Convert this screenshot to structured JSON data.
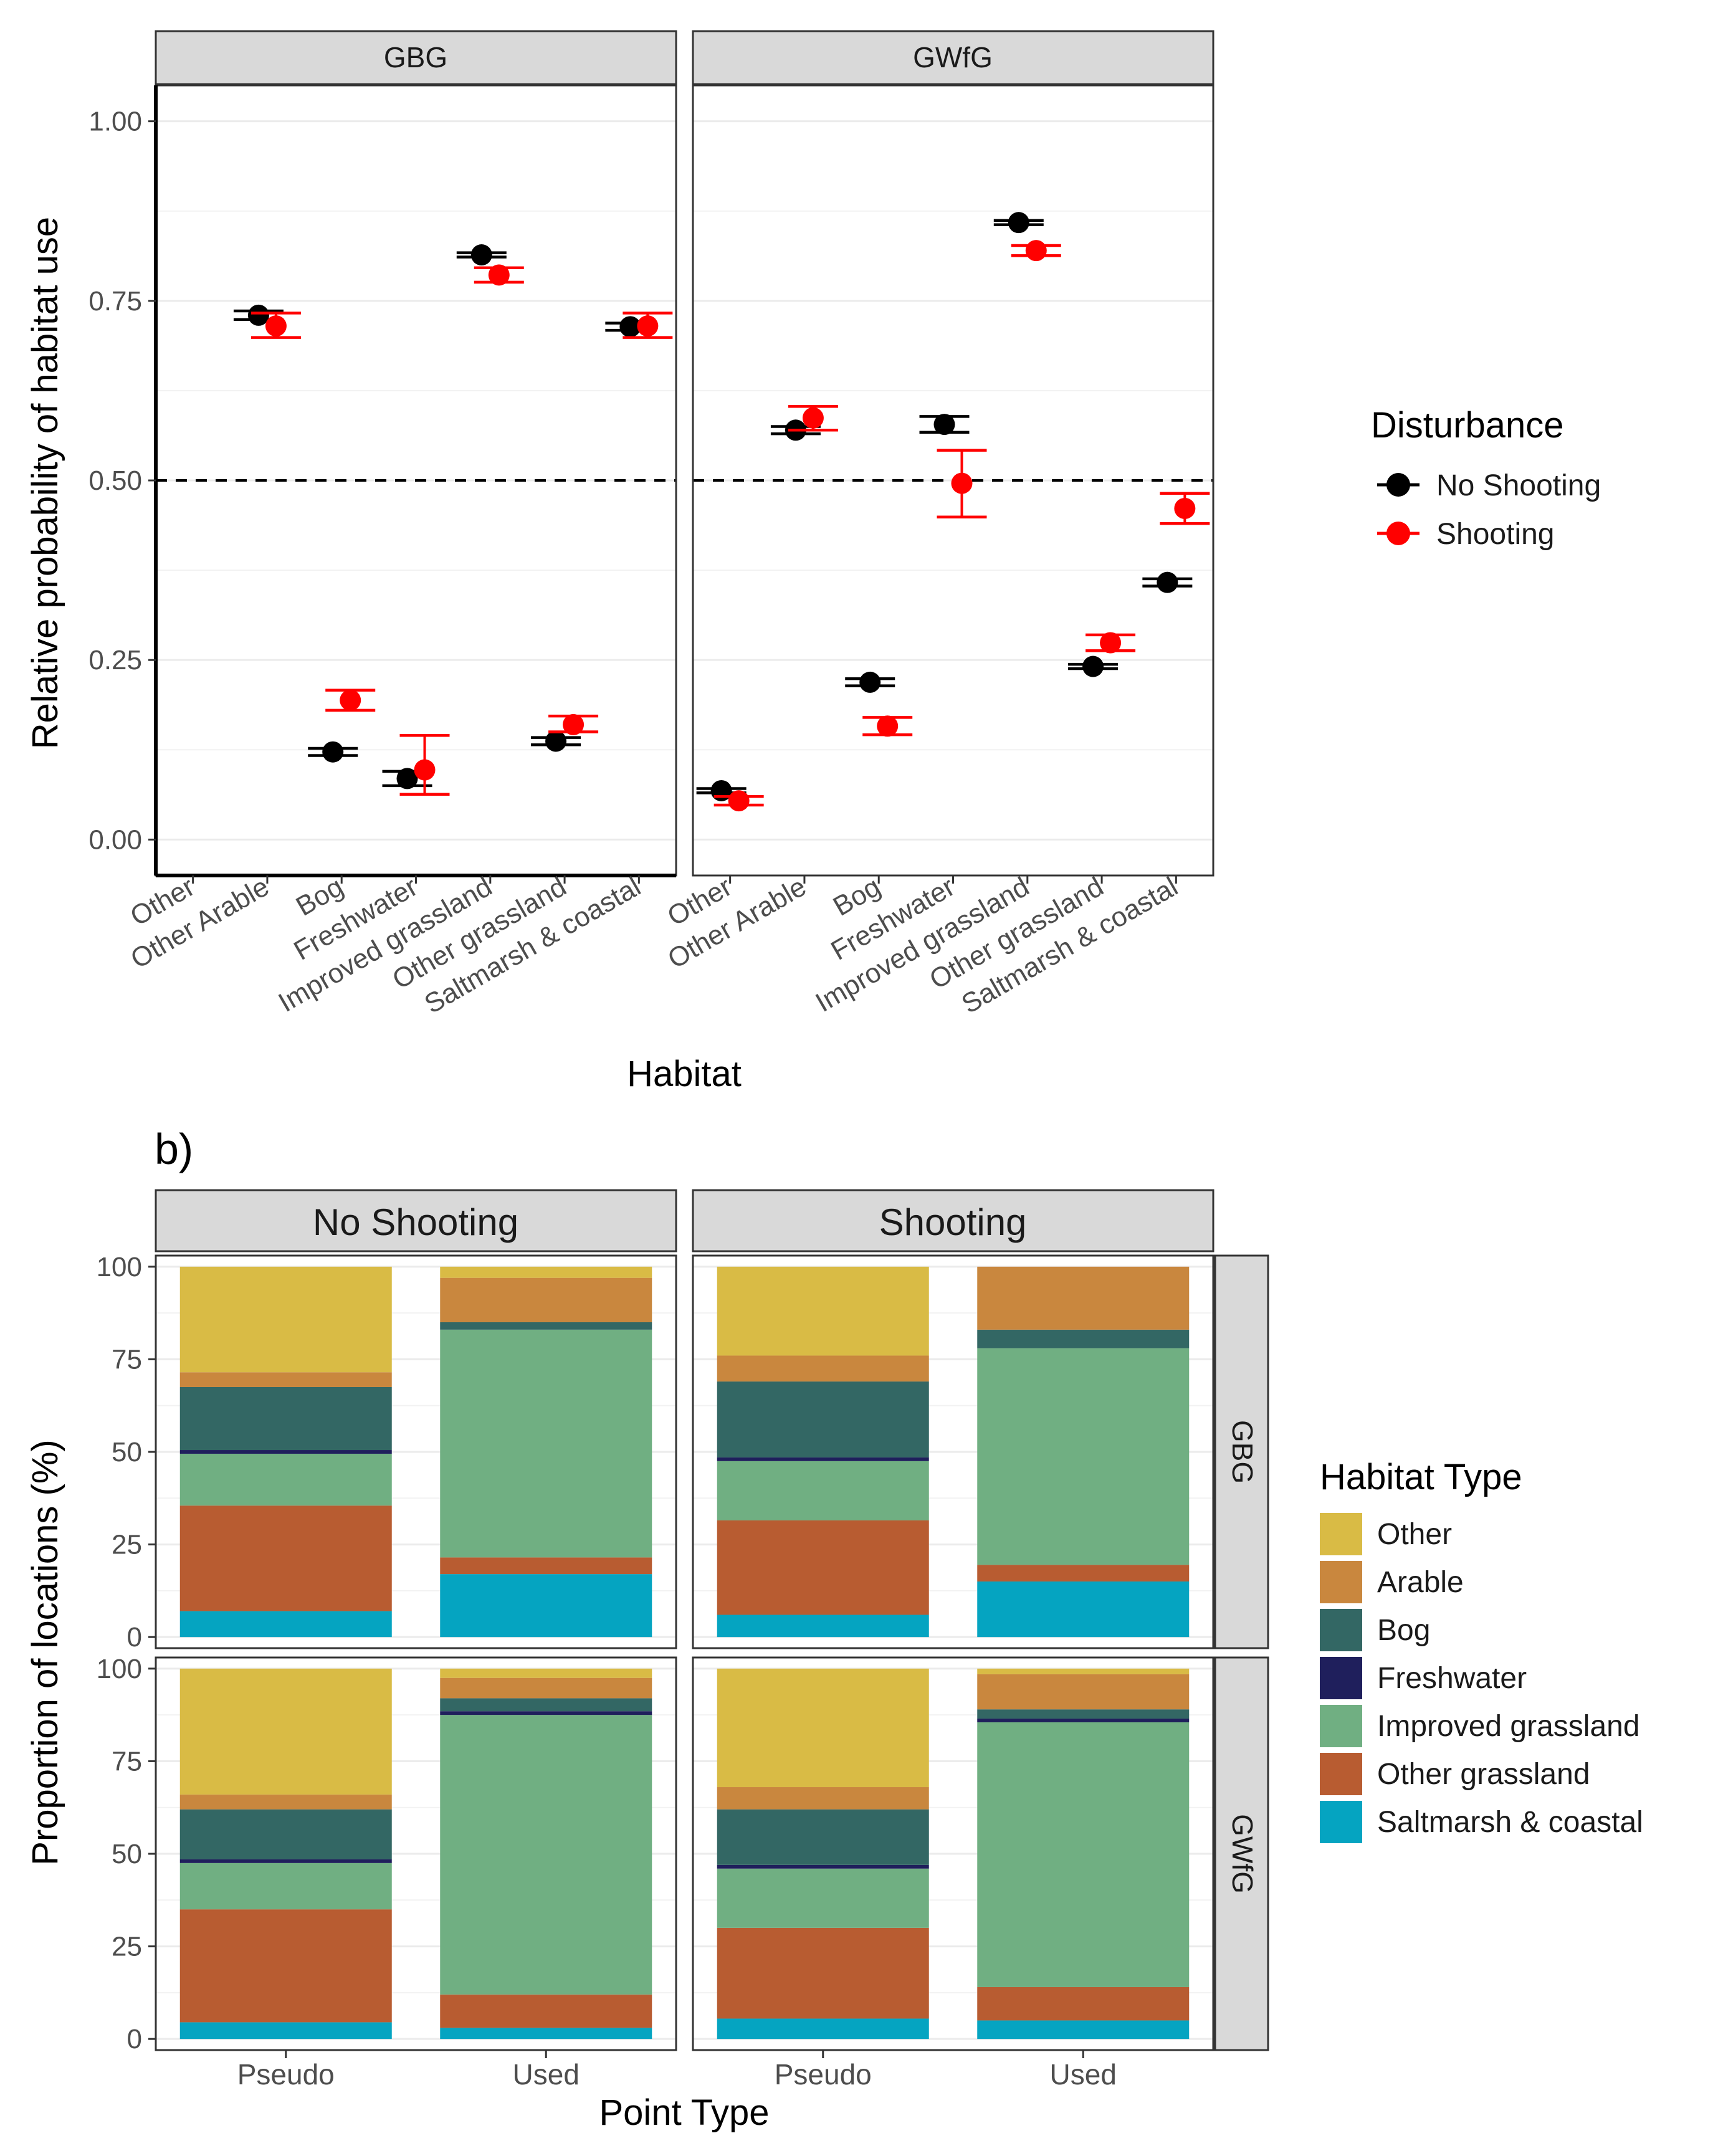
{
  "colors": {
    "no_shooting": "#000000",
    "shooting": "#FF0000",
    "strip_fill": "#D9D9D9",
    "panel_border": "#333333",
    "grid": "#EBEBEB",
    "habitat": {
      "Other": "#D9BB45",
      "Arable": "#C9873E",
      "Bog": "#336764",
      "Freshwater": "#1F1F5C",
      "Improved grassland": "#70AF82",
      "Other grassland": "#B85C31",
      "Saltmarsh & coastal": "#05A4C1"
    }
  },
  "panel_b_label": "b)",
  "chart_data": [
    {
      "type": "scatter",
      "subtype": "point-with-errorbars",
      "facets": [
        "GBG",
        "GWfG"
      ],
      "xlabel": "Habitat",
      "ylabel": "Relative probability of habitat use",
      "categories": [
        "Other",
        "Other Arable",
        "Bog",
        "Freshwater",
        "Improved grassland",
        "Other grassland",
        "Saltmarsh & coastal"
      ],
      "ylim": [
        -0.05,
        1.05
      ],
      "yticks": [
        0,
        0.25,
        0.5,
        0.75,
        1.0
      ],
      "ytick_labels": [
        "0.00",
        "0.25",
        "0.50",
        "0.75",
        "1.00"
      ],
      "reference_line": 0.5,
      "legend": {
        "title": "Disturbance",
        "entries": [
          "No Shooting",
          "Shooting"
        ],
        "position": "right"
      },
      "series": [
        {
          "name": "No Shooting",
          "facet": "GBG",
          "points": [
            {
              "x": "Other Arable",
              "y": 0.73,
              "lo": 0.724,
              "hi": 0.736
            },
            {
              "x": "Bog",
              "y": 0.122,
              "lo": 0.117,
              "hi": 0.127
            },
            {
              "x": "Freshwater",
              "y": 0.085,
              "lo": 0.075,
              "hi": 0.095
            },
            {
              "x": "Improved grassland",
              "y": 0.814,
              "lo": 0.811,
              "hi": 0.817
            },
            {
              "x": "Other grassland",
              "y": 0.137,
              "lo": 0.132,
              "hi": 0.142
            },
            {
              "x": "Saltmarsh & coastal",
              "y": 0.714,
              "lo": 0.709,
              "hi": 0.719
            }
          ]
        },
        {
          "name": "Shooting",
          "facet": "GBG",
          "points": [
            {
              "x": "Other Arable",
              "y": 0.715,
              "lo": 0.699,
              "hi": 0.733
            },
            {
              "x": "Bog",
              "y": 0.194,
              "lo": 0.18,
              "hi": 0.208
            },
            {
              "x": "Freshwater",
              "y": 0.097,
              "lo": 0.063,
              "hi": 0.145
            },
            {
              "x": "Improved grassland",
              "y": 0.786,
              "lo": 0.776,
              "hi": 0.796
            },
            {
              "x": "Other grassland",
              "y": 0.16,
              "lo": 0.15,
              "hi": 0.172
            },
            {
              "x": "Saltmarsh & coastal",
              "y": 0.715,
              "lo": 0.699,
              "hi": 0.733
            }
          ]
        },
        {
          "name": "No Shooting",
          "facet": "GWfG",
          "points": [
            {
              "x": "Other",
              "y": 0.068,
              "lo": 0.065,
              "hi": 0.071
            },
            {
              "x": "Other Arable",
              "y": 0.57,
              "lo": 0.565,
              "hi": 0.575
            },
            {
              "x": "Bog",
              "y": 0.219,
              "lo": 0.214,
              "hi": 0.224
            },
            {
              "x": "Freshwater",
              "y": 0.578,
              "lo": 0.567,
              "hi": 0.589
            },
            {
              "x": "Improved grassland",
              "y": 0.859,
              "lo": 0.856,
              "hi": 0.862
            },
            {
              "x": "Other grassland",
              "y": 0.241,
              "lo": 0.238,
              "hi": 0.244
            },
            {
              "x": "Saltmarsh & coastal",
              "y": 0.358,
              "lo": 0.353,
              "hi": 0.363
            }
          ]
        },
        {
          "name": "Shooting",
          "facet": "GWfG",
          "points": [
            {
              "x": "Other",
              "y": 0.054,
              "lo": 0.048,
              "hi": 0.06
            },
            {
              "x": "Other Arable",
              "y": 0.587,
              "lo": 0.57,
              "hi": 0.603
            },
            {
              "x": "Bog",
              "y": 0.158,
              "lo": 0.146,
              "hi": 0.17
            },
            {
              "x": "Freshwater",
              "y": 0.496,
              "lo": 0.449,
              "hi": 0.542
            },
            {
              "x": "Improved grassland",
              "y": 0.82,
              "lo": 0.813,
              "hi": 0.827
            },
            {
              "x": "Other grassland",
              "y": 0.274,
              "lo": 0.263,
              "hi": 0.285
            },
            {
              "x": "Saltmarsh & coastal",
              "y": 0.461,
              "lo": 0.44,
              "hi": 0.482
            }
          ]
        }
      ]
    },
    {
      "type": "bar",
      "subtype": "stacked-percent",
      "col_facets": [
        "No Shooting",
        "Shooting"
      ],
      "row_facets": [
        "GBG",
        "GWfG"
      ],
      "categories": [
        "Pseudo",
        "Used"
      ],
      "xlabel": "Point Type",
      "ylabel": "Proportion of locations (%)",
      "ylim": [
        -3,
        103
      ],
      "yticks": [
        0,
        25,
        50,
        75,
        100
      ],
      "ytick_labels": [
        "0",
        "25",
        "50",
        "75",
        "100"
      ],
      "legend": {
        "title": "Habitat Type",
        "entries": [
          "Other",
          "Arable",
          "Bog",
          "Freshwater",
          "Improved grassland",
          "Other grassland",
          "Saltmarsh & coastal"
        ],
        "position": "right"
      },
      "stack_order_bottom_to_top": [
        "Saltmarsh & coastal",
        "Other grassland",
        "Improved grassland",
        "Freshwater",
        "Bog",
        "Arable",
        "Other"
      ],
      "panels": [
        {
          "col": "No Shooting",
          "row": "GBG",
          "bars": [
            {
              "x": "Pseudo",
              "values": {
                "Saltmarsh & coastal": 7,
                "Other grassland": 28.5,
                "Improved grassland": 14,
                "Freshwater": 1,
                "Bog": 17,
                "Arable": 4,
                "Other": 28.5
              }
            },
            {
              "x": "Used",
              "values": {
                "Saltmarsh & coastal": 17,
                "Other grassland": 4.5,
                "Improved grassland": 61.5,
                "Freshwater": 0,
                "Bog": 2,
                "Arable": 12,
                "Other": 3
              }
            }
          ]
        },
        {
          "col": "Shooting",
          "row": "GBG",
          "bars": [
            {
              "x": "Pseudo",
              "values": {
                "Saltmarsh & coastal": 6,
                "Other grassland": 25.5,
                "Improved grassland": 16,
                "Freshwater": 1,
                "Bog": 20.5,
                "Arable": 7,
                "Other": 24
              }
            },
            {
              "x": "Used",
              "values": {
                "Saltmarsh & coastal": 15,
                "Other grassland": 4.5,
                "Improved grassland": 58.5,
                "Freshwater": 0,
                "Bog": 5,
                "Arable": 17,
                "Other": 0
              }
            }
          ]
        },
        {
          "col": "No Shooting",
          "row": "GWfG",
          "bars": [
            {
              "x": "Pseudo",
              "values": {
                "Saltmarsh & coastal": 4.5,
                "Other grassland": 30.5,
                "Improved grassland": 12.5,
                "Freshwater": 1,
                "Bog": 13.5,
                "Arable": 4,
                "Other": 34
              }
            },
            {
              "x": "Used",
              "values": {
                "Saltmarsh & coastal": 3,
                "Other grassland": 9,
                "Improved grassland": 75.5,
                "Freshwater": 1,
                "Bog": 3.5,
                "Arable": 5.5,
                "Other": 2.5
              }
            }
          ]
        },
        {
          "col": "Shooting",
          "row": "GWfG",
          "bars": [
            {
              "x": "Pseudo",
              "values": {
                "Saltmarsh & coastal": 5.5,
                "Other grassland": 24.5,
                "Improved grassland": 16,
                "Freshwater": 1,
                "Bog": 15,
                "Arable": 6,
                "Other": 32
              }
            },
            {
              "x": "Used",
              "values": {
                "Saltmarsh & coastal": 5,
                "Other grassland": 9,
                "Improved grassland": 71.5,
                "Freshwater": 1,
                "Bog": 2.5,
                "Arable": 9.5,
                "Other": 1.5
              }
            }
          ]
        }
      ]
    }
  ]
}
